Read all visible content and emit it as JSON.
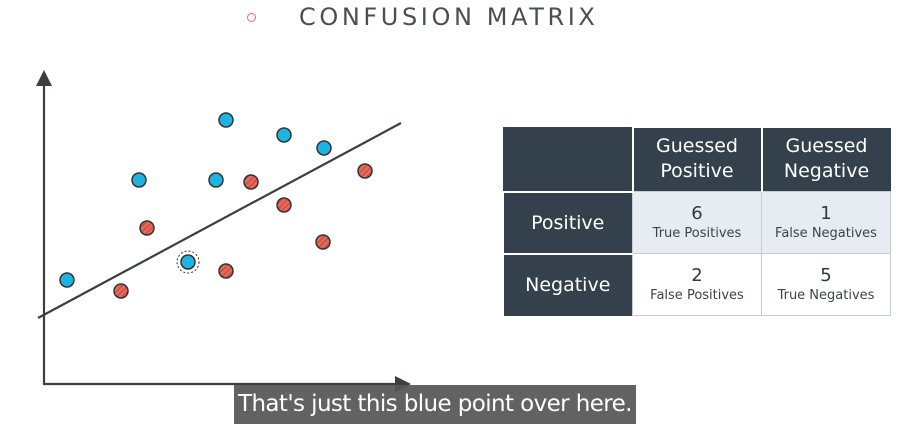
{
  "title": {
    "text": "CONFUSION MATRIX",
    "bullet_color": "#e06d86"
  },
  "diagram": {
    "colors": {
      "axis": "#3a3f44",
      "blue_point": "#1db4e1",
      "red_point": "#e8665a",
      "red_hatch": "#a33f35",
      "point_stroke": "#333333"
    },
    "blue_points": [
      {
        "id": 1,
        "highlighted": false
      },
      {
        "id": 2,
        "highlighted": false
      },
      {
        "id": 3,
        "highlighted": false
      },
      {
        "id": 4,
        "highlighted": false
      },
      {
        "id": 5,
        "highlighted": false
      },
      {
        "id": 6,
        "highlighted": false
      },
      {
        "id": 7,
        "highlighted": true
      }
    ],
    "red_points": [
      {
        "id": 1
      },
      {
        "id": 2
      },
      {
        "id": 3
      },
      {
        "id": 4
      },
      {
        "id": 5
      },
      {
        "id": 6
      },
      {
        "id": 7
      }
    ]
  },
  "matrix": {
    "col_headers": [
      "Guessed\nPositive",
      "Guessed\nNegative"
    ],
    "row_headers": [
      "Positive",
      "Negative"
    ],
    "cells": [
      [
        {
          "value": "6",
          "label": "True Positives"
        },
        {
          "value": "1",
          "label": "False Negatives"
        }
      ],
      [
        {
          "value": "2",
          "label": "False Positives"
        },
        {
          "value": "5",
          "label": "True Negatives"
        }
      ]
    ],
    "colors": {
      "header_bg": "#34414c",
      "shaded_bg": "#e6ecf1"
    }
  },
  "caption": "That's just this blue point over here."
}
